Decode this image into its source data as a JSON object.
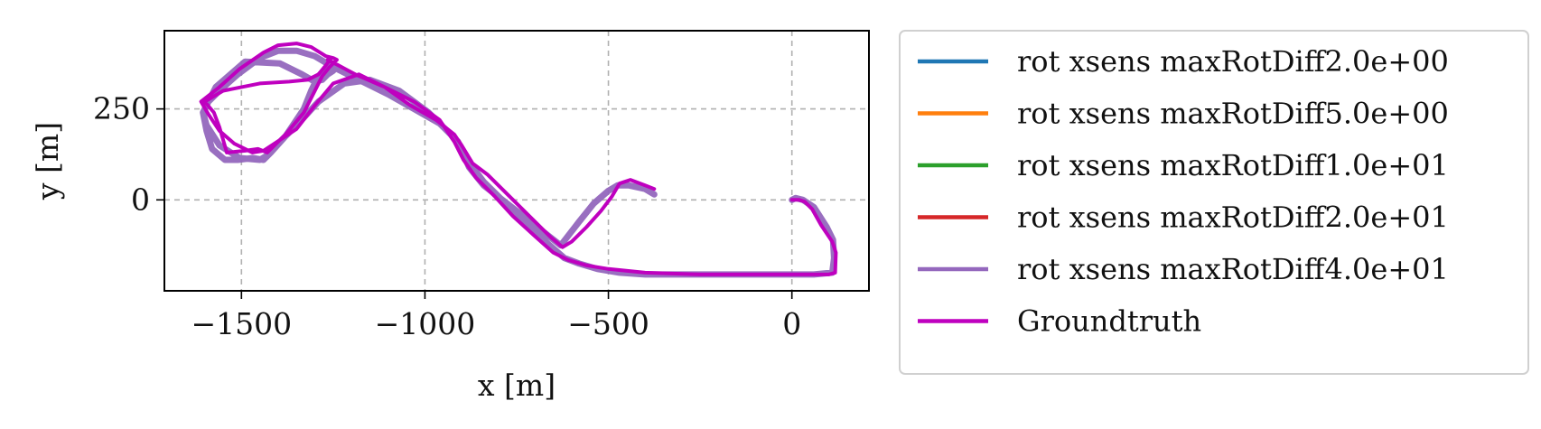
{
  "chart_data": {
    "type": "line",
    "xlabel": "x [m]",
    "ylabel": "y [m]",
    "xlim": [
      -1710,
      210
    ],
    "ylim": [
      -250,
      465
    ],
    "xticks": [
      -1500,
      -1000,
      -500,
      0
    ],
    "xtick_labels": [
      "−1500",
      "−1000",
      "−500",
      "0"
    ],
    "yticks": [
      0,
      250
    ],
    "ytick_labels": [
      "0",
      "250"
    ],
    "grid": true,
    "legend_position": "outside-right",
    "series": [
      {
        "name": "rot xsens maxRotDiff2.0e+00",
        "color": "#1f77b4",
        "x": [],
        "y": []
      },
      {
        "name": "rot xsens maxRotDiff5.0e+00",
        "color": "#ff7f0e",
        "x": [],
        "y": []
      },
      {
        "name": "rot xsens maxRotDiff1.0e+01",
        "color": "#2ca02c",
        "x": [],
        "y": []
      },
      {
        "name": "rot xsens maxRotDiff2.0e+01",
        "color": "#d62728",
        "x": [],
        "y": []
      },
      {
        "name": "rot xsens maxRotDiff4.0e+01",
        "color": "#9467bd",
        "x": [
          -375,
          -400,
          -445,
          -475,
          -500,
          -540,
          -580,
          -630,
          -700,
          -770,
          -840,
          -880,
          -910,
          -960,
          -1030,
          -1100,
          -1180,
          -1240,
          -1275,
          -1300,
          -1350,
          -1400,
          -1450,
          -1510,
          -1560,
          -1590,
          -1605,
          -1595,
          -1580,
          -1545,
          -1510,
          -1470,
          -1440,
          -1420,
          -1380,
          -1330,
          -1310,
          -1290,
          -1270,
          -1255,
          -1245,
          -1250,
          -1265,
          -1280,
          -1300,
          -1335,
          -1395,
          -1490,
          -1570,
          -1605,
          -1595,
          -1560,
          -1505,
          -1450,
          -1425,
          -1395,
          -1345,
          -1290,
          -1220,
          -1150,
          -1070,
          -990,
          -930,
          -900,
          -870,
          -840,
          -780,
          -720,
          -660,
          -620,
          -580,
          -530,
          -470,
          -400,
          -300,
          -200,
          -100,
          0,
          60,
          110,
          115,
          112,
          95,
          60,
          30,
          10,
          0
        ],
        "y": [
          15,
          30,
          40,
          40,
          25,
          -10,
          -60,
          -125,
          -70,
          -15,
          40,
          90,
          160,
          210,
          250,
          290,
          330,
          360,
          380,
          395,
          410,
          410,
          390,
          345,
          300,
          270,
          240,
          190,
          140,
          110,
          110,
          115,
          110,
          130,
          175,
          250,
          300,
          340,
          360,
          370,
          365,
          355,
          345,
          330,
          325,
          345,
          375,
          380,
          310,
          240,
          205,
          150,
          115,
          110,
          125,
          160,
          210,
          270,
          320,
          330,
          300,
          240,
          180,
          140,
          90,
          50,
          -10,
          -70,
          -125,
          -160,
          -175,
          -190,
          -200,
          -205,
          -205,
          -205,
          -205,
          -205,
          -205,
          -200,
          -160,
          -110,
          -75,
          -20,
          0,
          5,
          0
        ]
      },
      {
        "name": "Groundtruth",
        "color": "#bf00bf",
        "x": [
          0,
          20,
          35,
          55,
          80,
          110,
          120,
          118,
          100,
          40,
          -100,
          -250,
          -400,
          -500,
          -560,
          -610,
          -650,
          -700,
          -760,
          -810,
          -860,
          -895,
          -920,
          -960,
          -1030,
          -1110,
          -1190,
          -1245,
          -1265,
          -1255,
          -1270,
          -1290,
          -1320,
          -1370,
          -1450,
          -1550,
          -1600,
          -1575,
          -1560,
          -1540,
          -1490,
          -1455,
          -1430,
          -1380,
          -1330,
          -1300,
          -1280,
          -1260,
          -1240,
          -1250,
          -1270,
          -1310,
          -1350,
          -1400,
          -1440,
          -1505,
          -1560,
          -1610,
          -1590,
          -1560,
          -1520,
          -1470,
          -1440,
          -1410,
          -1350,
          -1300,
          -1250,
          -1180,
          -1110,
          -1040,
          -970,
          -920,
          -900,
          -870,
          -830,
          -780,
          -720,
          -660,
          -625,
          -600,
          -560,
          -520,
          -490,
          -470,
          -440,
          -400,
          -375
        ],
        "y": [
          0,
          0,
          -5,
          -25,
          -70,
          -115,
          -145,
          -200,
          -205,
          -205,
          -205,
          -205,
          -200,
          -190,
          -180,
          -165,
          -145,
          -100,
          -45,
          10,
          60,
          110,
          160,
          220,
          270,
          310,
          345,
          375,
          385,
          390,
          370,
          345,
          330,
          325,
          320,
          300,
          270,
          240,
          200,
          130,
          135,
          140,
          130,
          180,
          240,
          300,
          340,
          365,
          385,
          390,
          395,
          420,
          430,
          425,
          405,
          360,
          310,
          270,
          235,
          190,
          155,
          130,
          135,
          155,
          195,
          260,
          320,
          345,
          310,
          260,
          220,
          180,
          150,
          100,
          70,
          20,
          -40,
          -100,
          -130,
          -115,
          -75,
          -30,
          10,
          45,
          55,
          40,
          30
        ]
      }
    ]
  }
}
